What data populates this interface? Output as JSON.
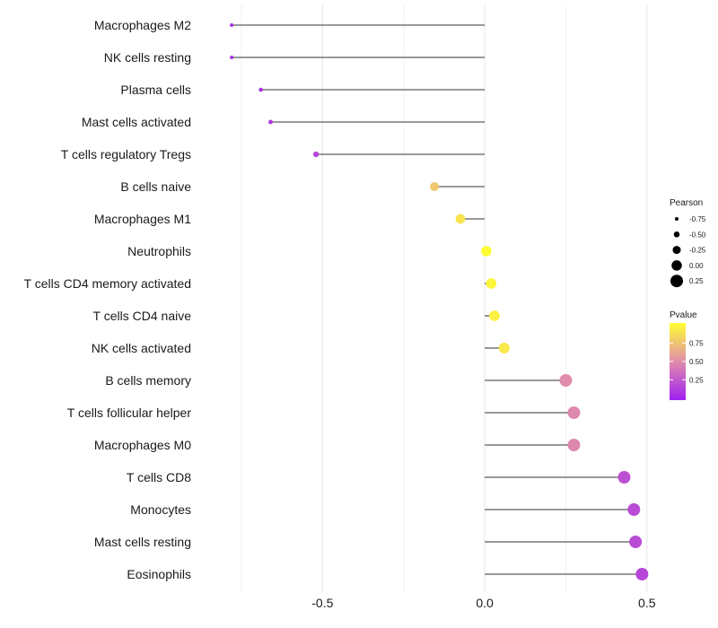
{
  "chart_data": {
    "type": "lollipop",
    "categories": [
      "Macrophages M2",
      "NK cells resting",
      "Plasma cells",
      "Mast cells activated",
      "T cells regulatory  Tregs",
      "B cells naive",
      "Macrophages M1",
      "Neutrophils",
      "T cells CD4 memory activated",
      "T cells CD4 naive",
      "NK cells activated",
      "B cells memory",
      "T cells follicular helper",
      "Macrophages M0",
      "T cells CD8",
      "Monocytes",
      "Mast cells resting",
      "Eosinophils"
    ],
    "pearson": [
      -0.78,
      -0.78,
      -0.69,
      -0.66,
      -0.52,
      -0.155,
      -0.075,
      0.005,
      0.02,
      0.03,
      0.06,
      0.25,
      0.275,
      0.275,
      0.43,
      0.46,
      0.465,
      0.485
    ],
    "pvalue": [
      0.08,
      0.08,
      0.08,
      0.12,
      0.18,
      0.75,
      0.88,
      0.99,
      0.96,
      0.94,
      0.9,
      0.5,
      0.48,
      0.48,
      0.22,
      0.2,
      0.2,
      0.18
    ],
    "xlim": [
      -0.88,
      0.52
    ],
    "xticks": [
      -0.5,
      0.0,
      0.5
    ],
    "xtick_labels": [
      "-0.5",
      "0.0",
      "0.5"
    ],
    "xlabel": "",
    "ylabel": "",
    "grid": true,
    "size_legend": {
      "title": "Pearson",
      "values": [
        -0.75,
        -0.5,
        -0.25,
        0.0,
        0.25
      ],
      "labels": [
        "-0.75",
        "-0.50",
        "-0.25",
        "0.00",
        "0.25"
      ]
    },
    "color_legend": {
      "title": "Pvalue",
      "ticks": [
        0.75,
        0.5,
        0.25
      ],
      "labels": [
        "0.75",
        "0.50",
        "0.25"
      ],
      "low_color": "#a020f0",
      "mid_color": "#e08cac",
      "high_color": "#ffff33"
    }
  }
}
